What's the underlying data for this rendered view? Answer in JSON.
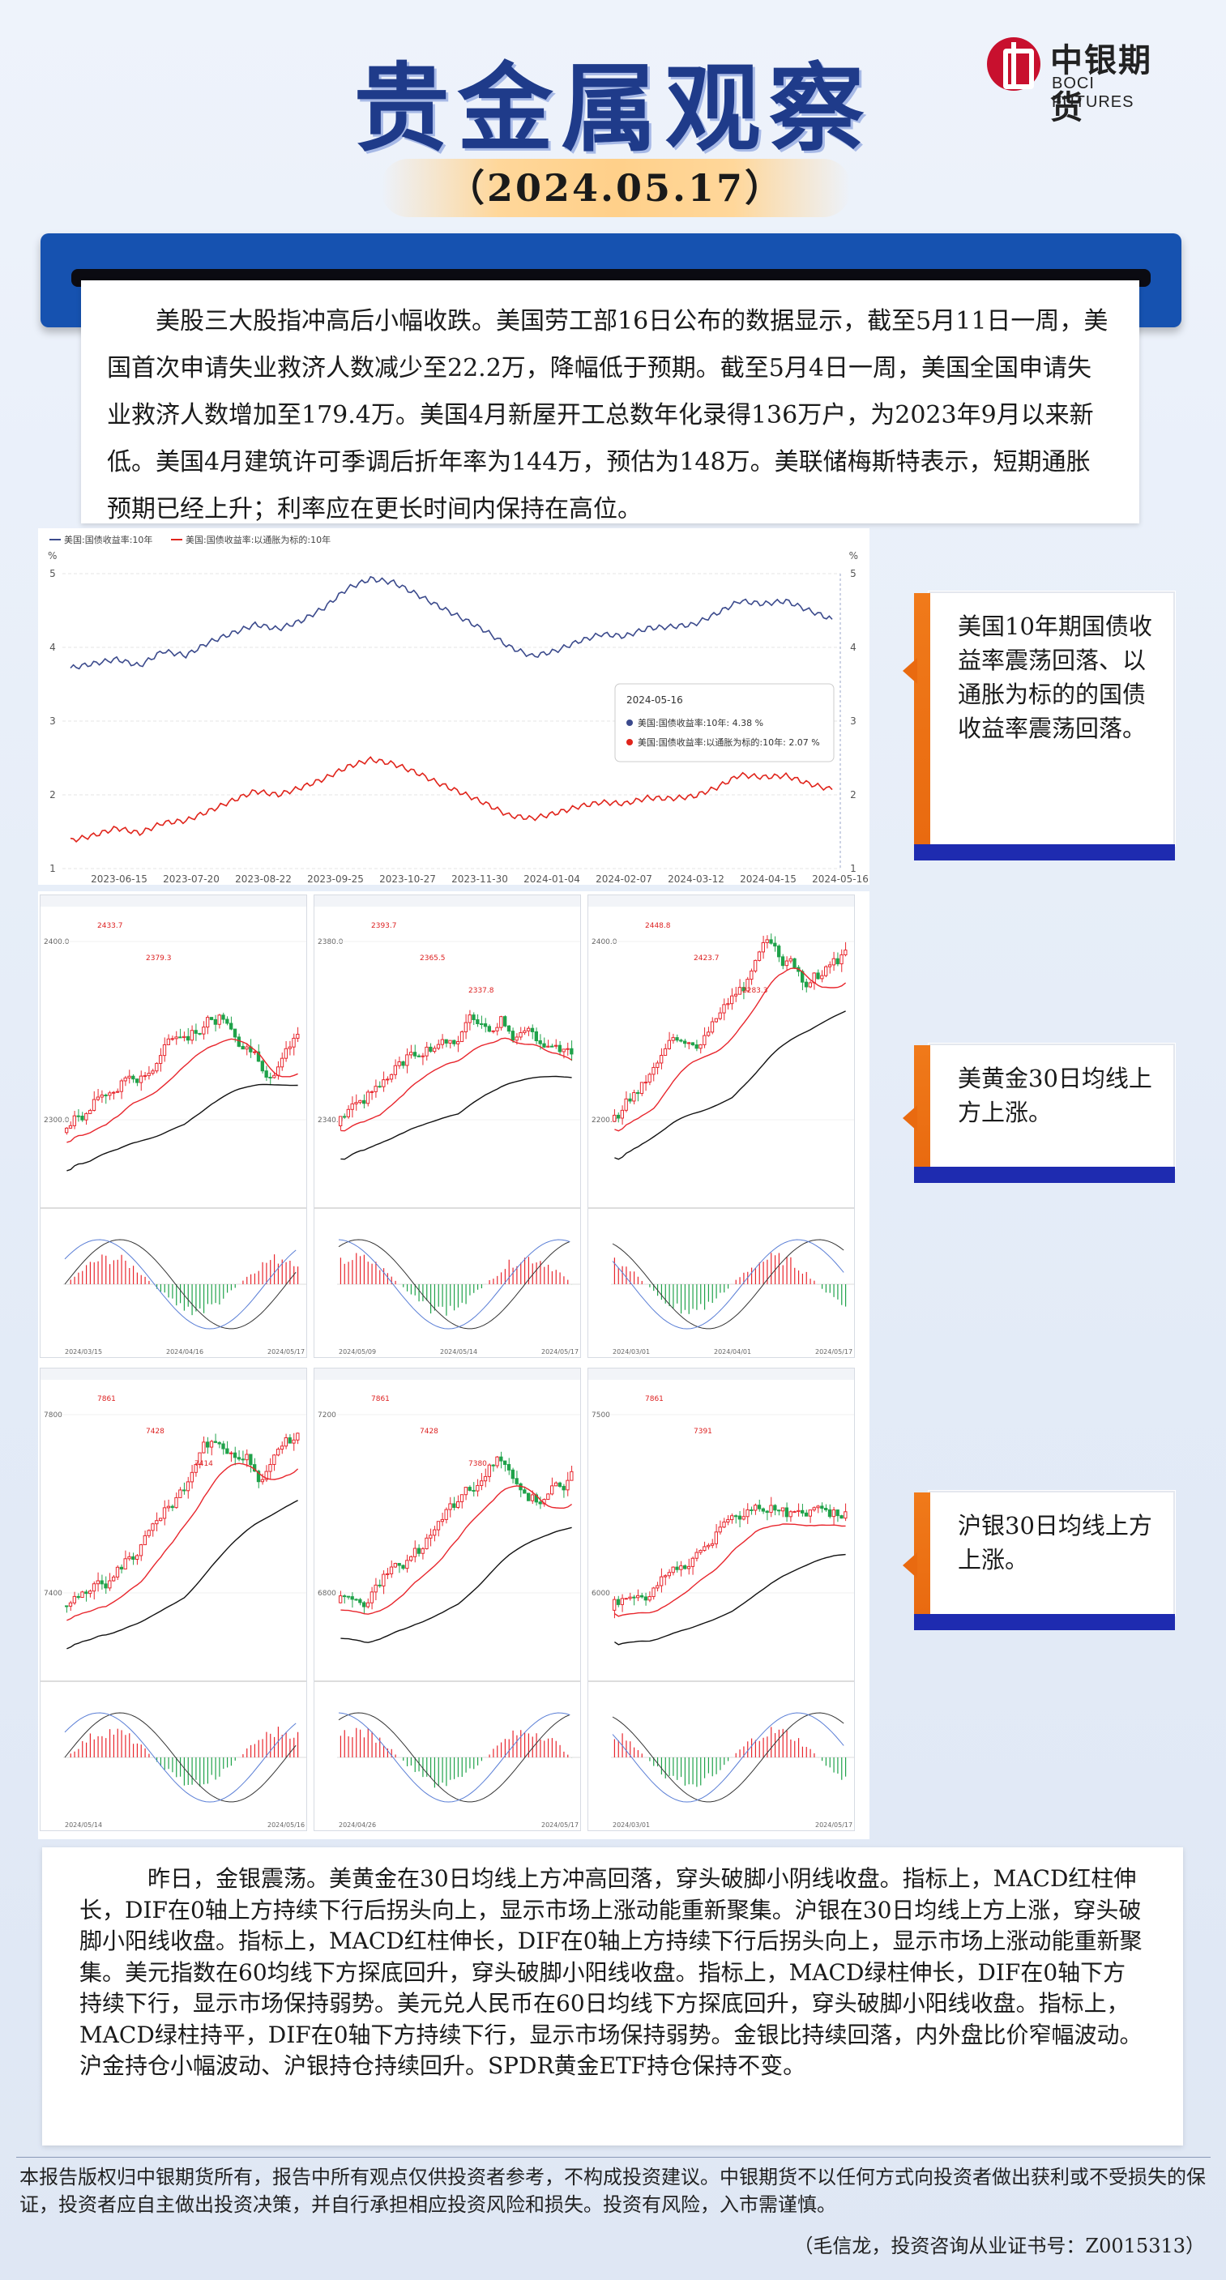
{
  "header": {
    "title": "贵金属观察",
    "date": "（2024.05.17）",
    "logo_cn": "中银期货",
    "logo_en": "BOCI FUTURES"
  },
  "summary_text": "美股三大股指冲高后小幅收跌。美国劳工部16日公布的数据显示，截至5月11日一周，美国首次申请失业救济人数减少至22.2万，降幅低于预期。截至5月4日一周，美国全国申请失业救济人数增加至179.4万。美国4月新屋开工总数年化录得136万户，为2023年9月以来新低。美国4月建筑许可季调后折年率为144万，预估为148万。美联储梅斯特表示，短期通胀预期已经上升；利率应在更长时间内保持在高位。",
  "chart_data": {
    "type": "line",
    "legend": [
      "美国:国债收益率:10年",
      "美国:国债收益率:以通胀为标的:10年"
    ],
    "y_unit": "%",
    "ylim": [
      1,
      5
    ],
    "yticks": [
      "5",
      "4",
      "3",
      "2",
      "1"
    ],
    "xticks": [
      "2023-06-15",
      "2023-07-20",
      "2023-08-22",
      "2023-09-25",
      "2023-10-27",
      "2023-11-30",
      "2024-01-04",
      "2024-02-07",
      "2024-03-12",
      "2024-04-15",
      "2024-05-16"
    ],
    "series": [
      {
        "name": "美国:国债收益率:10年",
        "color": "#3b4a8c",
        "values": [
          3.72,
          3.78,
          3.84,
          3.75,
          3.95,
          3.89,
          4.07,
          4.19,
          4.31,
          4.25,
          4.36,
          4.54,
          4.8,
          4.93,
          4.88,
          4.72,
          4.55,
          4.39,
          4.22,
          4.01,
          3.88,
          3.95,
          4.08,
          4.18,
          4.15,
          4.26,
          4.28,
          4.31,
          4.46,
          4.63,
          4.59,
          4.63,
          4.5,
          4.38
        ]
      },
      {
        "name": "美国:国债收益率:以通胀为标的:10年",
        "color": "#e0241b",
        "values": [
          1.38,
          1.45,
          1.55,
          1.48,
          1.62,
          1.65,
          1.78,
          1.92,
          2.05,
          2.0,
          2.1,
          2.22,
          2.38,
          2.48,
          2.42,
          2.3,
          2.15,
          2.02,
          1.88,
          1.72,
          1.68,
          1.75,
          1.84,
          1.9,
          1.88,
          1.96,
          1.95,
          1.98,
          2.1,
          2.27,
          2.24,
          2.26,
          2.15,
          2.07
        ]
      }
    ],
    "tooltip": {
      "date": "2024-05-16",
      "rows": [
        "美国:国债收益率:10年:    4.38 %",
        "美国:国债收益率:以通胀为标的:10年:    2.07 %"
      ]
    }
  },
  "panels_top": [
    {
      "prices": [
        "2400.0",
        "2300.0"
      ],
      "marks": [
        "2433.7",
        "2379.3"
      ],
      "dates": [
        "2024/03/15",
        "2024/04/16",
        "2024/05/17"
      ]
    },
    {
      "prices": [
        "2380.0",
        "2340.0"
      ],
      "marks": [
        "2393.7",
        "2365.5",
        "2337.8"
      ],
      "dates": [
        "2024/05/09",
        "2024/05/14",
        "2024/05/17"
      ]
    },
    {
      "prices": [
        "2400.0",
        "2200.0"
      ],
      "marks": [
        "2448.8",
        "2423.7",
        "2283.3"
      ],
      "dates": [
        "2024/03/01",
        "2024/04/01",
        "2024/05/17"
      ]
    }
  ],
  "panels_bottom": [
    {
      "prices": [
        "7800",
        "7400"
      ],
      "marks": [
        "7861",
        "7428",
        "7414"
      ],
      "dates": [
        "2024/05/14",
        "2024/05/16"
      ]
    },
    {
      "prices": [
        "7200",
        "6800"
      ],
      "marks": [
        "7861",
        "7428",
        "7380"
      ],
      "dates": [
        "2024/04/26",
        "2024/05/17"
      ]
    },
    {
      "prices": [
        "7500",
        "6000"
      ],
      "marks": [
        "7861",
        "7391"
      ],
      "dates": [
        "2024/03/01",
        "2024/05/17"
      ]
    }
  ],
  "callouts": [
    {
      "text": "美国10年期国债收益率震荡回落、以通胀为标的的国债收益率震荡回落。"
    },
    {
      "text": "美黄金30日均线上方上涨。"
    },
    {
      "text": "沪银30日均线上方上涨。"
    }
  ],
  "analysis_text": "昨日，金银震荡。美黄金在30日均线上方冲高回落，穿头破脚小阴线收盘。指标上，MACD红柱伸长，DIF在0轴上方持续下行后拐头向上，显示市场上涨动能重新聚集。沪银在30日均线上方上涨，穿头破脚小阳线收盘。指标上，MACD红柱伸长，DIF在0轴上方持续下行后拐头向上，显示市场上涨动能重新聚集。美元指数在60均线下方探底回升，穿头破脚小阳线收盘。指标上，MACD绿柱伸长，DIF在0轴下方持续下行，显示市场保持弱势。美元兑人民币在60日均线下方探底回升，穿头破脚小阳线收盘。指标上，MACD绿柱持平，DIF在0轴下方持续下行，显示市场保持弱势。金银比持续回落，内外盘比价窄幅波动。沪金持仓小幅波动、沪银持仓持续回升。SPDR黄金ETF持仓保持不变。",
  "footer": {
    "disclaimer": "本报告版权归中银期货所有，报告中所有观点仅供投资者参考，不构成投资建议。中银期货不以任何方式向投资者做出获利或不受损失的保证，投资者应自主做出投资决策，并自行承担相应投资风险和损失。投资有风险，入市需谨慎。",
    "author": "（毛信龙，投资咨询从业证书号：Z0015313）"
  }
}
